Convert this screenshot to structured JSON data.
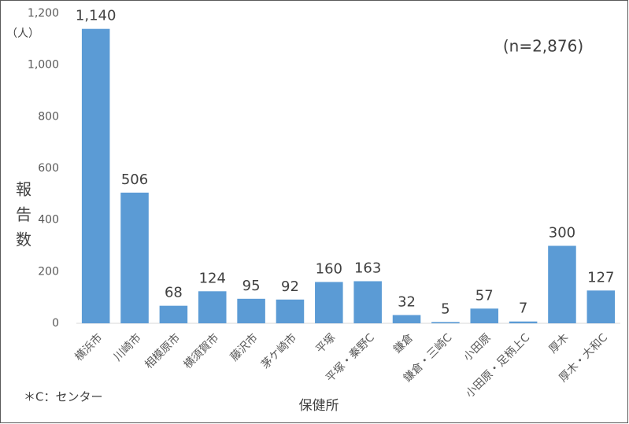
{
  "chart_data": {
    "type": "bar",
    "categories": [
      "横浜市",
      "川崎市",
      "相模原市",
      "横須賀市",
      "藤沢市",
      "茅ケ崎市",
      "平塚",
      "平塚・秦野C",
      "鎌倉",
      "鎌倉・三崎C",
      "小田原",
      "小田原・足柄上C",
      "厚木",
      "厚木・大和C"
    ],
    "values": [
      1140,
      506,
      68,
      124,
      95,
      92,
      160,
      163,
      32,
      5,
      57,
      7,
      300,
      127
    ],
    "value_labels": [
      "1,140",
      "506",
      "68",
      "124",
      "95",
      "92",
      "160",
      "163",
      "32",
      "5",
      "57",
      "7",
      "300",
      "127"
    ],
    "color": "#5b9bd5",
    "ylim": [
      0,
      1200
    ],
    "yticks": [
      0,
      200,
      400,
      600,
      800,
      {
        "value": 1000,
        "label": "1,000"
      },
      {
        "value": 1200,
        "label": "1,200"
      }
    ],
    "y_unit": "（人）",
    "y_label": "報告数",
    "x_label": "保健所",
    "annotation": "(n=2,876)",
    "note": "＊C：センター"
  }
}
